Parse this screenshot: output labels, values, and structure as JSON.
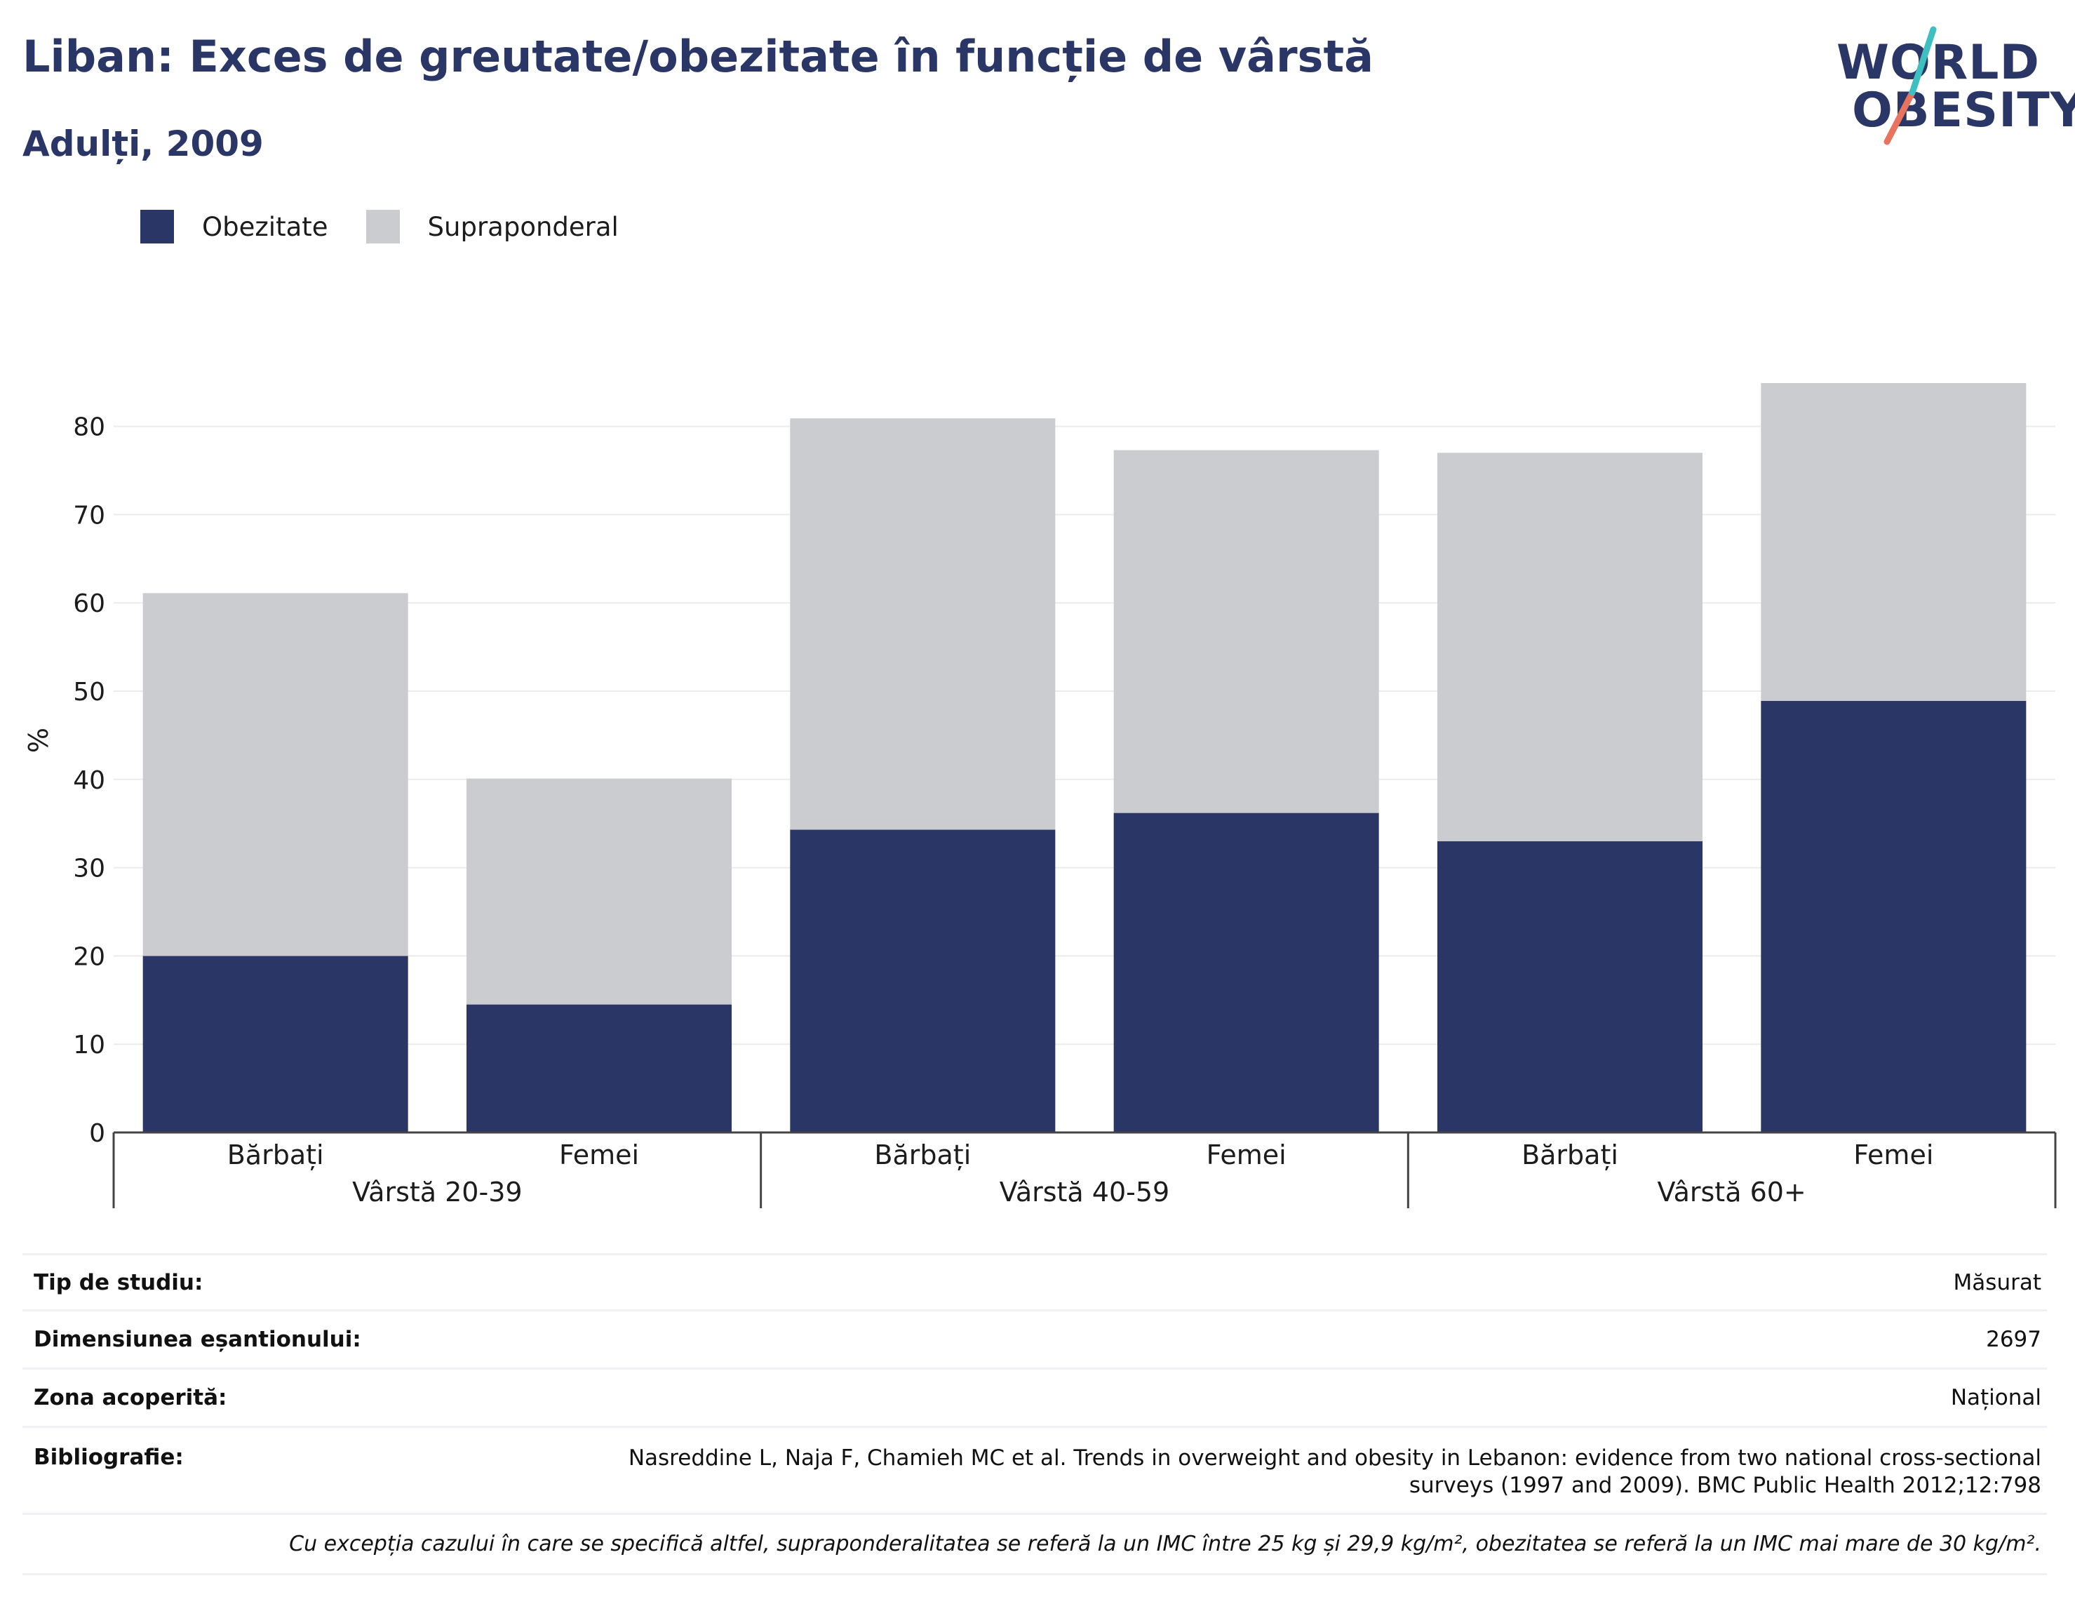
{
  "header": {
    "title": "Liban: Exces de greutate/obezitate în funcție de vârstă",
    "subtitle": "Adulți, 2009"
  },
  "logo": {
    "line1": "WORLD",
    "line2": "OBESITY",
    "icon": "world-obesity-logo"
  },
  "legend": [
    {
      "label": "Obezitate",
      "color": "#2a3766"
    },
    {
      "label": "Supraponderal",
      "color": "#cacccf"
    }
  ],
  "chart_data": {
    "type": "bar",
    "stacked": true,
    "ylabel": "%",
    "xlabel": "",
    "ylim": [
      0,
      85
    ],
    "yticks": [
      0,
      10,
      20,
      30,
      40,
      50,
      60,
      70,
      80
    ],
    "grid": true,
    "legend_position": "top-left",
    "groups": [
      {
        "label": "Vârstă 20-39",
        "categories": [
          "Bărbați",
          "Femei"
        ]
      },
      {
        "label": "Vârstă 40-59",
        "categories": [
          "Bărbați",
          "Femei"
        ]
      },
      {
        "label": "Vârstă 60+",
        "categories": [
          "Bărbați",
          "Femei"
        ]
      }
    ],
    "categories": [
      "Bărbați",
      "Femei",
      "Bărbați",
      "Femei",
      "Bărbați",
      "Femei"
    ],
    "series": [
      {
        "name": "Obezitate",
        "color": "#2a3766",
        "values": [
          20.0,
          14.5,
          34.3,
          36.2,
          33.0,
          48.9
        ]
      },
      {
        "name": "Supraponderal",
        "color": "#cacccf",
        "values": [
          41.1,
          25.6,
          46.6,
          41.1,
          44.0,
          36.0
        ]
      }
    ]
  },
  "info": {
    "study_type": {
      "label": "Tip de studiu:",
      "value": "Măsurat"
    },
    "sample_size": {
      "label": "Dimensiunea eșantionului:",
      "value": "2697"
    },
    "coverage": {
      "label": "Zona acoperită:",
      "value": "Național"
    },
    "bibliography": {
      "label": "Bibliografie:",
      "value": "Nasreddine L, Naja F, Chamieh MC et al. Trends in overweight and obesity in Lebanon: evidence from two national cross-sectional surveys (1997 and 2009). BMC Public Health 2012;12:798"
    },
    "note": "Cu excepția cazului în care se specifică altfel, supraponderalitatea se referă la un IMC între 25 kg și 29,9 kg/m², obezitatea se referă la un IMC mai mare de 30 kg/m²."
  }
}
